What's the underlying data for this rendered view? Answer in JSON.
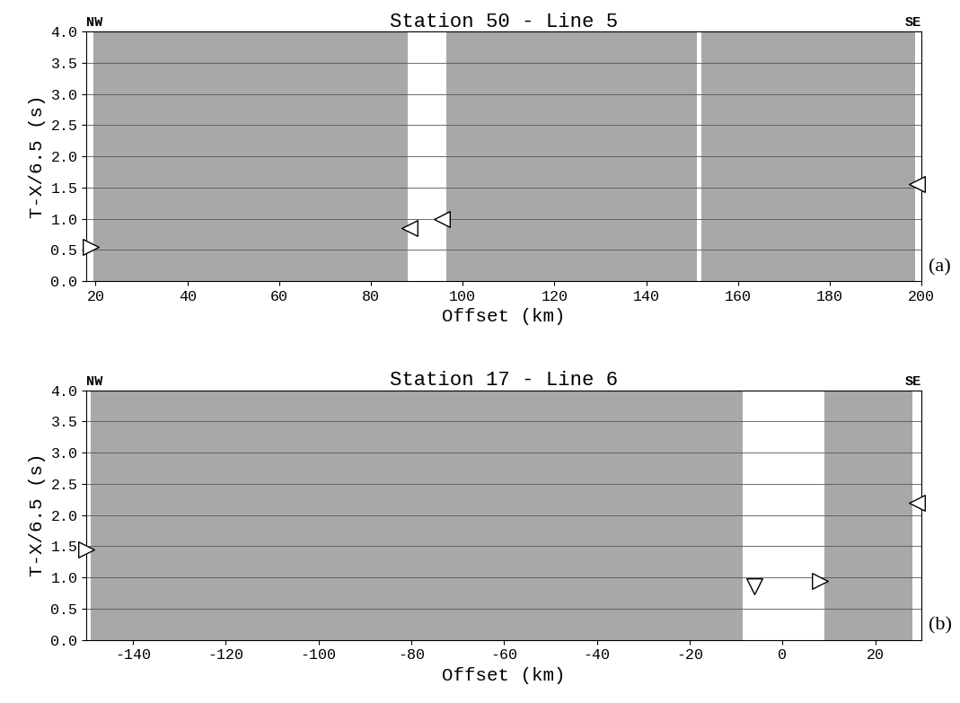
{
  "chart_data": [
    {
      "type": "scatter",
      "title": "Station 50 - Line 5",
      "x_label": "Offset (km)",
      "y_label": "T-X/6.5 (s)",
      "left_label": "NW",
      "right_label": "SE",
      "panel_label": "(a)",
      "xlim": [
        18,
        200
      ],
      "xticks": [
        20,
        40,
        60,
        80,
        100,
        120,
        140,
        160,
        180,
        200
      ],
      "ylim": [
        0.0,
        4.0
      ],
      "yticks": [
        0.0,
        0.5,
        1.0,
        1.5,
        2.0,
        2.5,
        3.0,
        3.5,
        4.0
      ],
      "grid": true,
      "data_ranges": [
        [
          19.5,
          88
        ],
        [
          96.5,
          151
        ],
        [
          152,
          198.5
        ]
      ],
      "series": [
        {
          "marker": "triangle_right",
          "x": [
            19
          ],
          "y": [
            0.55
          ]
        },
        {
          "marker": "triangle_left",
          "x": [
            88.5,
            95.5,
            199
          ],
          "y": [
            0.85,
            1.0,
            1.55
          ]
        }
      ]
    },
    {
      "type": "scatter",
      "title": "Station 17 - Line 6",
      "x_label": "Offset (km)",
      "y_label": "T-X/6.5 (s)",
      "left_label": "NW",
      "right_label": "SE",
      "panel_label": "(b)",
      "xlim": [
        -150,
        30
      ],
      "xticks": [
        -140,
        -120,
        -100,
        -80,
        -60,
        -40,
        -20,
        0,
        20
      ],
      "ylim": [
        0.0,
        4.0
      ],
      "yticks": [
        0.0,
        0.5,
        1.0,
        1.5,
        2.0,
        2.5,
        3.0,
        3.5,
        4.0
      ],
      "grid": true,
      "data_ranges": [
        [
          -149,
          -8.5
        ],
        [
          9,
          28
        ]
      ],
      "series": [
        {
          "marker": "triangle_right",
          "x": [
            -150,
            8
          ],
          "y": [
            1.45,
            0.95
          ]
        },
        {
          "marker": "triangle_down",
          "x": [
            -6
          ],
          "y": [
            0.85
          ]
        },
        {
          "marker": "triangle_left",
          "x": [
            29
          ],
          "y": [
            2.2
          ]
        }
      ]
    }
  ]
}
